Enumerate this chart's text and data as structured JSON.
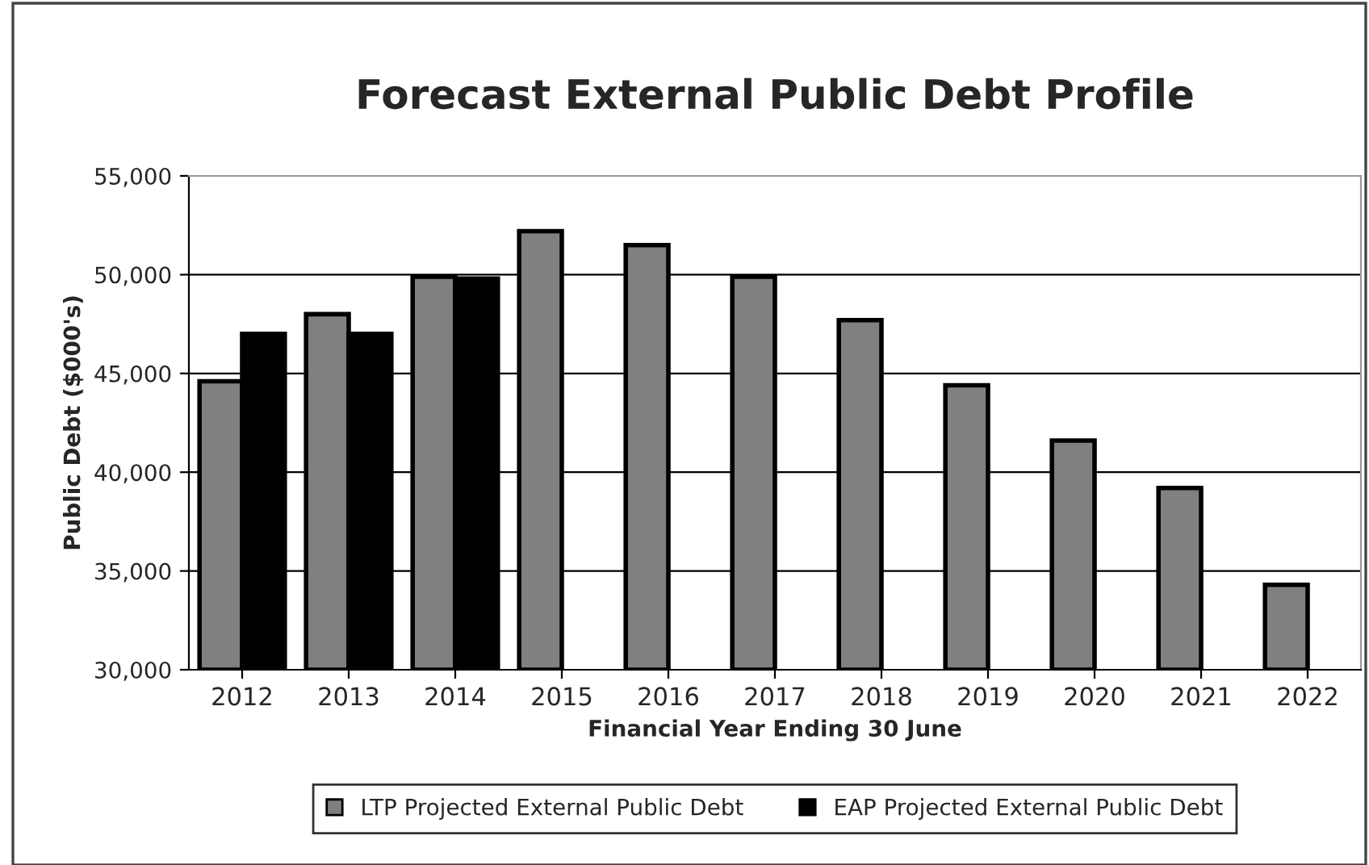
{
  "chart_data": {
    "type": "bar",
    "title": "Forecast External Public Debt Profile",
    "xlabel": "Financial Year Ending 30 June",
    "ylabel": "Public Debt ($000's)",
    "categories": [
      "2012",
      "2013",
      "2014",
      "2015",
      "2016",
      "2017",
      "2018",
      "2019",
      "2020",
      "2021",
      "2022"
    ],
    "series": [
      {
        "name": "LTP Projected External Public Debt",
        "color": "#808080",
        "values": [
          44600,
          48000,
          49900,
          52200,
          51500,
          49900,
          47700,
          44400,
          41600,
          39200,
          34300
        ]
      },
      {
        "name": "EAP Projected External Public Debt",
        "color": "#000000",
        "values": [
          47000,
          47000,
          49800,
          null,
          null,
          null,
          null,
          null,
          null,
          null,
          null
        ]
      }
    ],
    "ylim": [
      30000,
      55000
    ],
    "yticks": [
      {
        "value": 30000,
        "label": "30,000"
      },
      {
        "value": 35000,
        "label": "35,000"
      },
      {
        "value": 40000,
        "label": "40,000"
      },
      {
        "value": 45000,
        "label": "45,000"
      },
      {
        "value": 50000,
        "label": "50,000"
      },
      {
        "value": 55000,
        "label": "55,000"
      }
    ],
    "grid": "y",
    "legend": "bottom"
  }
}
